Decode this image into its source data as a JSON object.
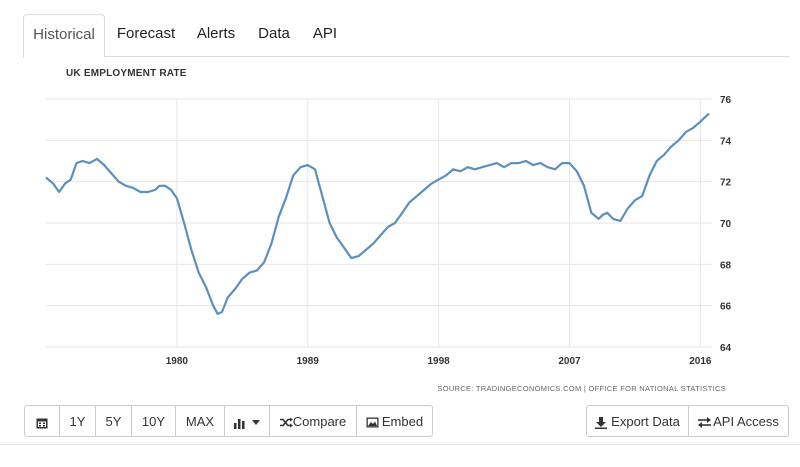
{
  "tabs": [
    {
      "label": "Historical",
      "active": true
    },
    {
      "label": "Forecast",
      "active": false
    },
    {
      "label": "Alerts",
      "active": false
    },
    {
      "label": "Data",
      "active": false
    },
    {
      "label": "API",
      "active": false
    }
  ],
  "chart_data": {
    "type": "line",
    "title": "UK EMPLOYMENT RATE",
    "source": "SOURCE: TRADINGECONOMICS.COM | OFFICE FOR NATIONAL STATISTICS",
    "xlabel": "",
    "ylabel": "",
    "xlim": [
      1971,
      2016.8
    ],
    "ylim": [
      64,
      76
    ],
    "x_ticks": [
      1980,
      1989,
      1998,
      2007,
      2016
    ],
    "y_ticks": [
      64,
      66,
      68,
      70,
      72,
      74,
      76
    ],
    "y_axis_side": "right",
    "grid": true,
    "line_color": "#5b8fbd",
    "series": [
      {
        "name": "",
        "x": [
          1971.0,
          1971.5,
          1971.9,
          1972.3,
          1972.7,
          1973.1,
          1973.5,
          1974.0,
          1974.5,
          1975.0,
          1975.5,
          1976.0,
          1976.5,
          1977.0,
          1977.5,
          1978.0,
          1978.5,
          1978.8,
          1979.2,
          1979.6,
          1980.0,
          1980.5,
          1981.0,
          1981.5,
          1982.0,
          1982.5,
          1982.8,
          1983.1,
          1983.5,
          1984.0,
          1984.5,
          1985.0,
          1985.5,
          1986.0,
          1986.5,
          1987.0,
          1987.5,
          1988.0,
          1988.5,
          1989.0,
          1989.5,
          1990.0,
          1990.5,
          1991.0,
          1991.5,
          1992.0,
          1992.5,
          1993.0,
          1993.5,
          1994.0,
          1994.5,
          1995.0,
          1995.5,
          1996.0,
          1996.5,
          1997.0,
          1997.5,
          1998.0,
          1998.5,
          1999.0,
          1999.5,
          2000.0,
          2000.5,
          2001.0,
          2001.5,
          2002.0,
          2002.5,
          2003.0,
          2003.5,
          2004.0,
          2004.5,
          2005.0,
          2005.5,
          2006.0,
          2006.5,
          2007.0,
          2007.5,
          2008.0,
          2008.5,
          2009.0,
          2009.3,
          2009.6,
          2010.0,
          2010.5,
          2011.0,
          2011.5,
          2012.0,
          2012.5,
          2013.0,
          2013.5,
          2014.0,
          2014.5,
          2015.0,
          2015.5,
          2016.0,
          2016.3,
          2016.6
        ],
        "values": [
          72.2,
          71.9,
          71.5,
          71.9,
          72.1,
          72.9,
          73.0,
          72.9,
          73.1,
          72.8,
          72.4,
          72.0,
          71.8,
          71.7,
          71.5,
          71.5,
          71.6,
          71.8,
          71.8,
          71.6,
          71.2,
          70.0,
          68.7,
          67.6,
          66.9,
          66.0,
          65.6,
          65.7,
          66.4,
          66.8,
          67.3,
          67.6,
          67.7,
          68.1,
          69.0,
          70.3,
          71.2,
          72.3,
          72.7,
          72.8,
          72.6,
          71.3,
          70.0,
          69.3,
          68.8,
          68.3,
          68.4,
          68.7,
          69.0,
          69.4,
          69.8,
          70.0,
          70.5,
          71.0,
          71.3,
          71.6,
          71.9,
          72.1,
          72.3,
          72.6,
          72.5,
          72.7,
          72.6,
          72.7,
          72.8,
          72.9,
          72.7,
          72.9,
          72.9,
          73.0,
          72.8,
          72.9,
          72.7,
          72.6,
          72.9,
          72.9,
          72.5,
          71.8,
          70.5,
          70.2,
          70.4,
          70.5,
          70.2,
          70.1,
          70.7,
          71.1,
          71.3,
          72.3,
          73.0,
          73.3,
          73.7,
          74.0,
          74.4,
          74.6,
          74.9,
          75.1,
          75.3
        ]
      }
    ]
  },
  "toolbar": {
    "calendar_icon": "calendar-icon",
    "ranges": [
      "1Y",
      "5Y",
      "10Y",
      "MAX"
    ],
    "chart_type_icon": "bar-chart-icon",
    "compare_label": "Compare",
    "embed_label": "Embed",
    "export_label": "Export Data",
    "api_label": "API Access"
  }
}
